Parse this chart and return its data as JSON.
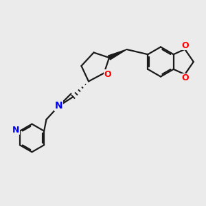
{
  "bg_color": "#ebebeb",
  "bond_color": "#1a1a1a",
  "N_color": "#0000ff",
  "O_color": "#ff0000",
  "line_width": 1.6,
  "figsize": [
    3.0,
    3.0
  ],
  "dpi": 100,
  "xlim": [
    0,
    10
  ],
  "ylim": [
    0,
    10
  ]
}
